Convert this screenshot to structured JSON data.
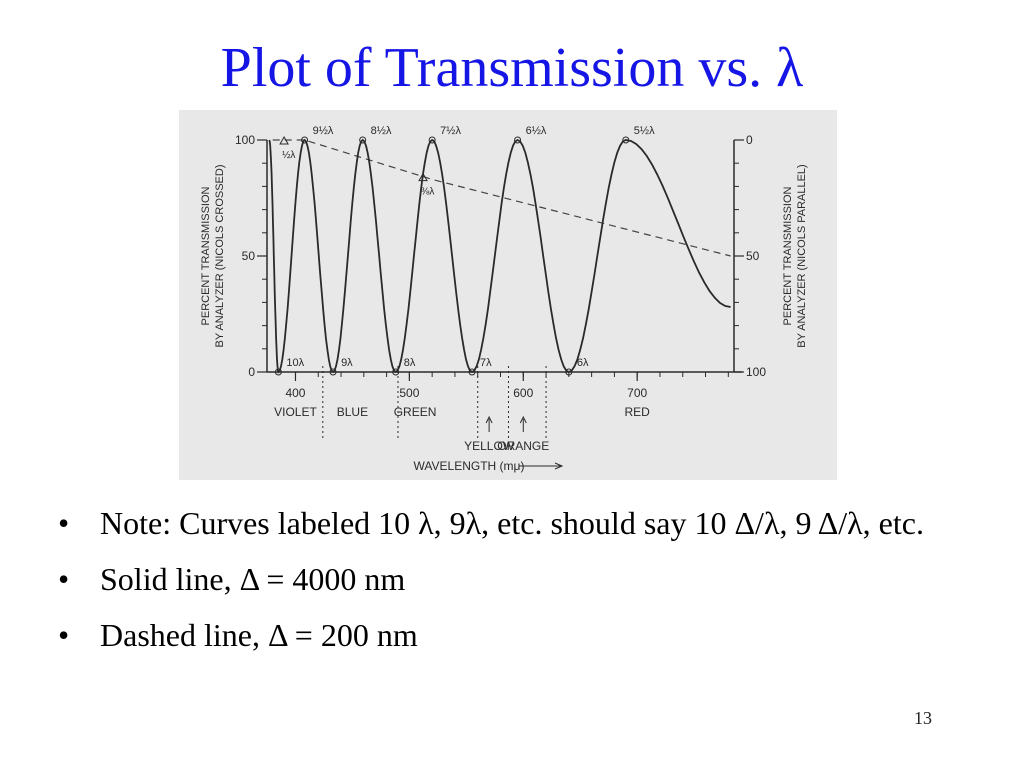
{
  "title": "Plot of Transmission vs. λ",
  "bullets": [
    "Note: Curves labeled 10 λ, 9λ, etc. should say 10 Δ/λ, 9 Δ/λ, etc.",
    "Solid line, Δ = 4000 nm",
    "Dashed line, Δ = 200 nm"
  ],
  "page_number": "13",
  "colors": {
    "title": "#1515e6",
    "figure_bg": "#e8e8e8",
    "ink": "#2a2a2a"
  },
  "chart_data": {
    "type": "line",
    "xlabel": "WAVELENGTH (mμ)",
    "ylabel_left": "PERCENT TRANSMISSION BY ANALYZER (NICOLS CROSSED)",
    "ylabel_right": "PERCENT TRANSMISSION BY ANALYZER (NICOLS PARALLEL)",
    "xlim": [
      375,
      785
    ],
    "ylim": [
      0,
      100
    ],
    "left_ticks": [
      {
        "value": 0,
        "label": "0"
      },
      {
        "value": 50,
        "label": "50"
      },
      {
        "value": 100,
        "label": "100"
      }
    ],
    "right_ticks": [
      {
        "value": 100,
        "label": "0"
      },
      {
        "value": 50,
        "label": "50"
      },
      {
        "value": 0,
        "label": "100"
      }
    ],
    "x_ticks": [
      {
        "value": 400,
        "label": "400"
      },
      {
        "value": 500,
        "label": "500"
      },
      {
        "value": 600,
        "label": "600"
      },
      {
        "value": 700,
        "label": "700"
      }
    ],
    "color_bands": [
      {
        "label": "VIOLET",
        "x": 400
      },
      {
        "label": "BLUE",
        "x": 450
      },
      {
        "label": "GREEN",
        "x": 505
      },
      {
        "label": "RED",
        "x": 700
      }
    ],
    "color_arrows": [
      {
        "label": "YELLOW",
        "x": 570
      },
      {
        "label": "ORANGE",
        "x": 600
      }
    ],
    "boundary_lines": [
      424,
      490,
      560,
      587,
      620
    ],
    "series": [
      {
        "name": "Δ = 4000 nm",
        "style": "solid",
        "minima": [
          {
            "x": 385,
            "label": "10λ"
          },
          {
            "x": 433,
            "label": "9λ"
          },
          {
            "x": 488,
            "label": "8λ"
          },
          {
            "x": 555,
            "label": "7λ"
          },
          {
            "x": 640,
            "label": "6λ"
          }
        ],
        "maxima": [
          {
            "x": 408,
            "label": "9½λ"
          },
          {
            "x": 459,
            "label": "8½λ"
          },
          {
            "x": 520,
            "label": "7½λ"
          },
          {
            "x": 595,
            "label": "6½λ"
          },
          {
            "x": 690,
            "label": "5½λ"
          }
        ],
        "end_x": 782,
        "end_y": 28
      },
      {
        "name": "Δ = 200 nm",
        "style": "dashed",
        "x": [
          380,
          408,
          520,
          782
        ],
        "y": [
          100,
          100,
          83,
          50
        ],
        "annotations": [
          {
            "x": 390,
            "label": "½λ"
          },
          {
            "x": 512,
            "label": "⅜λ"
          }
        ]
      }
    ]
  }
}
